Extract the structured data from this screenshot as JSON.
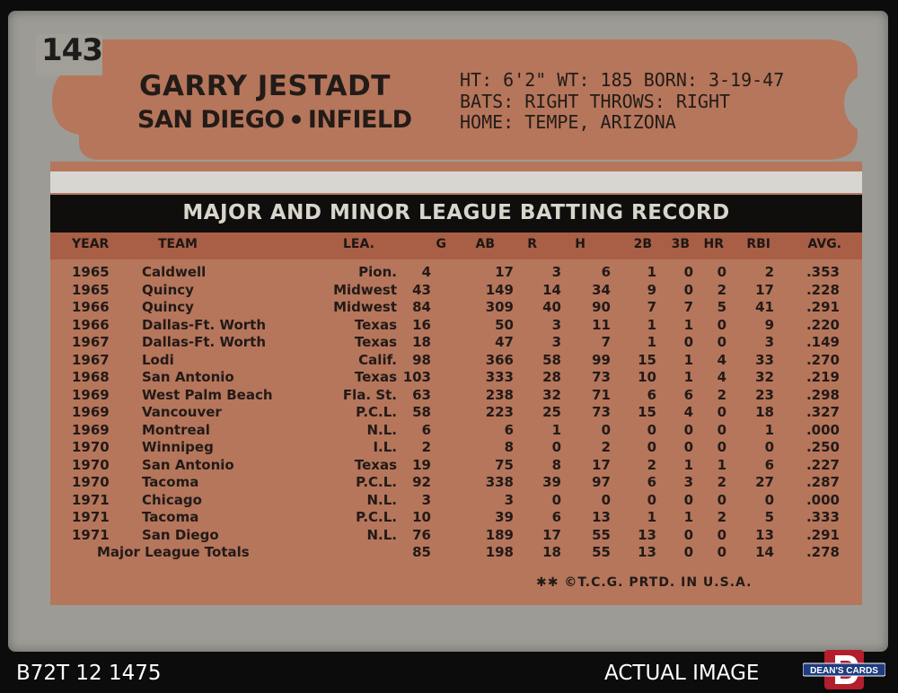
{
  "card": {
    "number": "143",
    "player_name": "GARRY JESTADT",
    "team": "SAN DIEGO",
    "position": "INFIELD",
    "bio": {
      "line1": "HT: 6'2\"  WT: 185  BORN: 3-19-47",
      "line2": "BATS: RIGHT     THROWS: RIGHT",
      "line3": "HOME: TEMPE, ARIZONA"
    },
    "record_title": "MAJOR AND MINOR LEAGUE BATTING RECORD",
    "columns": [
      "YEAR",
      "TEAM",
      "LEA.",
      "G",
      "AB",
      "R",
      "H",
      "2B",
      "3B",
      "HR",
      "RBI",
      "AVG."
    ],
    "rows": [
      [
        "1965",
        "Caldwell",
        "Pion.",
        "4",
        "17",
        "3",
        "6",
        "1",
        "0",
        "0",
        "2",
        ".353"
      ],
      [
        "1965",
        "Quincy",
        "Midwest",
        "43",
        "149",
        "14",
        "34",
        "9",
        "0",
        "2",
        "17",
        ".228"
      ],
      [
        "1966",
        "Quincy",
        "Midwest",
        "84",
        "309",
        "40",
        "90",
        "7",
        "7",
        "5",
        "41",
        ".291"
      ],
      [
        "1966",
        "Dallas-Ft. Worth",
        "Texas",
        "16",
        "50",
        "3",
        "11",
        "1",
        "1",
        "0",
        "9",
        ".220"
      ],
      [
        "1967",
        "Dallas-Ft. Worth",
        "Texas",
        "18",
        "47",
        "3",
        "7",
        "1",
        "0",
        "0",
        "3",
        ".149"
      ],
      [
        "1967",
        "Lodi",
        "Calif.",
        "98",
        "366",
        "58",
        "99",
        "15",
        "1",
        "4",
        "33",
        ".270"
      ],
      [
        "1968",
        "San Antonio",
        "Texas",
        "103",
        "333",
        "28",
        "73",
        "10",
        "1",
        "4",
        "32",
        ".219"
      ],
      [
        "1969",
        "West Palm Beach",
        "Fla. St.",
        "63",
        "238",
        "32",
        "71",
        "6",
        "6",
        "2",
        "23",
        ".298"
      ],
      [
        "1969",
        "Vancouver",
        "P.C.L.",
        "58",
        "223",
        "25",
        "73",
        "15",
        "4",
        "0",
        "18",
        ".327"
      ],
      [
        "1969",
        "Montreal",
        "N.L.",
        "6",
        "6",
        "1",
        "0",
        "0",
        "0",
        "0",
        "1",
        ".000"
      ],
      [
        "1970",
        "Winnipeg",
        "I.L.",
        "2",
        "8",
        "0",
        "2",
        "0",
        "0",
        "0",
        "0",
        ".250"
      ],
      [
        "1970",
        "San Antonio",
        "Texas",
        "19",
        "75",
        "8",
        "17",
        "2",
        "1",
        "1",
        "6",
        ".227"
      ],
      [
        "1970",
        "Tacoma",
        "P.C.L.",
        "92",
        "338",
        "39",
        "97",
        "6",
        "3",
        "2",
        "27",
        ".287"
      ],
      [
        "1971",
        "Chicago",
        "N.L.",
        "3",
        "3",
        "0",
        "0",
        "0",
        "0",
        "0",
        "0",
        ".000"
      ],
      [
        "1971",
        "Tacoma",
        "P.C.L.",
        "10",
        "39",
        "6",
        "13",
        "1",
        "1",
        "2",
        "5",
        ".333"
      ],
      [
        "1971",
        "San Diego",
        "N.L.",
        "76",
        "189",
        "17",
        "55",
        "13",
        "0",
        "0",
        "13",
        ".291"
      ]
    ],
    "totals": {
      "label": "Major League Totals",
      "values": [
        "85",
        "198",
        "18",
        "55",
        "13",
        "0",
        "0",
        "14",
        ".278"
      ]
    },
    "footer": "✱✱ ©T.C.G. PRTD. IN U.S.A."
  },
  "overlay": {
    "inventory_code": "B72T 12 1475",
    "actual_image_label": "ACTUAL IMAGE",
    "logo_text": "DEAN'S CARDS"
  },
  "colors": {
    "card_gray": "#9c9b95",
    "nameplate_brown": "#b5765c",
    "header_band": "#a85f45",
    "title_band": "#0f0e0d"
  },
  "icons": [
    "star-icon",
    "deans-cards-logo"
  ]
}
